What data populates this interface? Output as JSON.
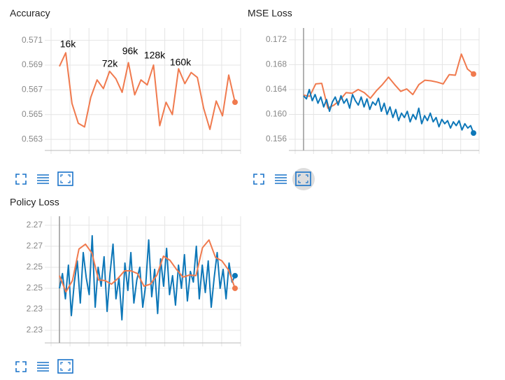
{
  "chart_data": [
    {
      "type": "line",
      "title": "Accuracy",
      "ylim": [
        0.5621,
        0.572
      ],
      "yticks": [
        0.571,
        0.569,
        0.567,
        0.565,
        0.563
      ],
      "grid": true,
      "annotations": [
        "16k",
        "72k",
        "96k",
        "128k",
        "160k"
      ],
      "series": [
        {
          "color": "#f07a4e",
          "values": [
            0.5689,
            0.57,
            0.5659,
            0.5643,
            0.564,
            0.5664,
            0.5678,
            0.5671,
            0.5685,
            0.5679,
            0.5668,
            0.5692,
            0.5666,
            0.5678,
            0.5674,
            0.569,
            0.5641,
            0.566,
            0.565,
            0.5687,
            0.5675,
            0.5684,
            0.568,
            0.5655,
            0.5638,
            0.5661,
            0.5649,
            0.5682,
            0.566
          ]
        }
      ]
    },
    {
      "type": "line",
      "title": "MSE Loss",
      "ylim": [
        0.1542,
        0.1739
      ],
      "yticks": [
        0.172,
        0.168,
        0.164,
        {
          "value": 0.16,
          "label": "0.160"
        },
        0.156
      ],
      "grid": true,
      "series": [
        {
          "color": "#f07a4e",
          "values": [
            0.1631,
            0.1629,
            0.1649,
            0.165,
            0.161,
            0.1615,
            0.1623,
            0.1635,
            0.1634,
            0.164,
            0.1635,
            0.1626,
            0.1638,
            0.1648,
            0.166,
            0.1648,
            0.1637,
            0.1641,
            0.1632,
            0.1648,
            0.1655,
            0.1654,
            0.1652,
            0.1649,
            0.1664,
            0.1663,
            0.1697,
            0.1673,
            0.1665
          ]
        },
        {
          "color": "#0d77b8",
          "values": [
            0.163,
            0.1625,
            0.164,
            0.1622,
            0.1632,
            0.1618,
            0.1628,
            0.1612,
            0.1624,
            0.1605,
            0.162,
            0.1628,
            0.1615,
            0.163,
            0.1618,
            0.1625,
            0.161,
            0.1632,
            0.1622,
            0.1615,
            0.1628,
            0.1612,
            0.1625,
            0.1608,
            0.162,
            0.1615,
            0.1626,
            0.1605,
            0.1618,
            0.16,
            0.1612,
            0.1595,
            0.1608,
            0.159,
            0.1602,
            0.1595,
            0.1605,
            0.1588,
            0.16,
            0.1592,
            0.161,
            0.1585,
            0.1598,
            0.159,
            0.1602,
            0.1588,
            0.1595,
            0.158,
            0.1592,
            0.1585,
            0.159,
            0.1578,
            0.1588,
            0.1582,
            0.159,
            0.1575,
            0.1585,
            0.1578,
            0.1582,
            0.157
          ]
        }
      ]
    },
    {
      "type": "line",
      "title": "Policy Loss",
      "ylim": [
        2.219,
        2.2793
      ],
      "yticks": [
        {
          "value": 2.275,
          "label": "2.27"
        },
        {
          "value": 2.265,
          "label": "2.27"
        },
        {
          "value": 2.255,
          "label": "2.25"
        },
        {
          "value": 2.245,
          "label": "2.25"
        },
        {
          "value": 2.235,
          "label": "2.23"
        },
        {
          "value": 2.225,
          "label": "2.23"
        }
      ],
      "grid": true,
      "series": [
        {
          "color": "#0d77b8",
          "values": [
            2.245,
            2.252,
            2.24,
            2.256,
            2.232,
            2.248,
            2.258,
            2.238,
            2.262,
            2.25,
            2.242,
            2.27,
            2.236,
            2.255,
            2.246,
            2.26,
            2.234,
            2.252,
            2.266,
            2.24,
            2.25,
            2.23,
            2.257,
            2.244,
            2.262,
            2.238,
            2.249,
            2.255,
            2.236,
            2.247,
            2.268,
            2.241,
            2.254,
            2.233,
            2.259,
            2.246,
            2.264,
            2.242,
            2.251,
            2.237,
            2.256,
            2.245,
            2.261,
            2.239,
            2.253,
            2.248,
            2.265,
            2.24,
            2.256,
            2.243,
            2.258,
            2.236,
            2.25,
            2.262,
            2.245,
            2.254,
            2.24,
            2.257,
            2.248,
            2.251
          ]
        },
        {
          "color": "#f07a4e",
          "values": [
            2.251,
            2.2433,
            2.2487,
            2.2637,
            2.266,
            2.2617,
            2.249,
            2.2487,
            2.247,
            2.2497,
            2.2533,
            2.2533,
            2.252,
            2.246,
            2.247,
            2.2513,
            2.2603,
            2.2583,
            2.254,
            2.2503,
            2.2513,
            2.251,
            2.2643,
            2.268,
            2.2597,
            2.258,
            2.2537,
            2.245
          ]
        }
      ]
    }
  ]
}
